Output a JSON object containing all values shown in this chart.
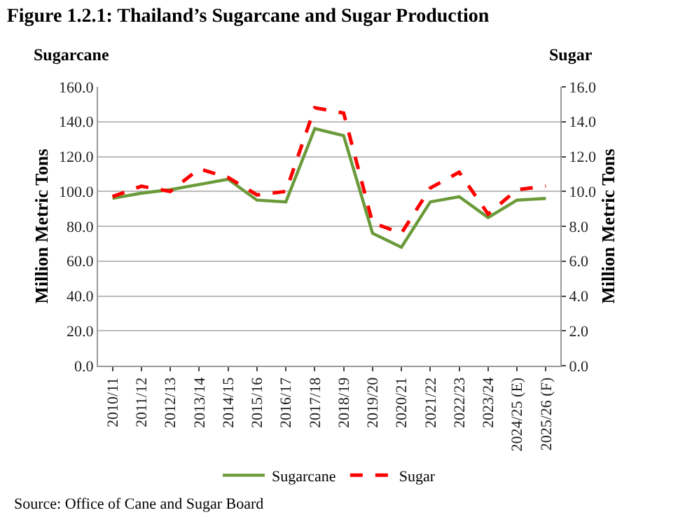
{
  "chart_data": {
    "type": "line",
    "title": "Figure 1.2.1: Thailand’s Sugarcane and Sugar Production",
    "categories": [
      "2010/11",
      "2011/12",
      "2012/13",
      "2013/14",
      "2014/15",
      "2015/16",
      "2016/17",
      "2017/18",
      "2018/19",
      "2019/20",
      "2020/21",
      "2021/22",
      "2022/23",
      "2023/24",
      "2024/25 (E)",
      "2025/26 (F)"
    ],
    "series": [
      {
        "name": "Sugarcane",
        "color": "#6a9a3a",
        "line_style": "solid",
        "values": [
          96,
          99,
          101,
          104,
          107,
          95,
          94,
          136,
          132,
          76,
          68,
          94,
          97,
          85,
          95,
          96
        ]
      },
      {
        "name": "Sugar",
        "color": "#ff0000",
        "line_style": "dashed",
        "axis": "y2",
        "values": [
          9.7,
          10.3,
          10.0,
          11.3,
          10.8,
          9.8,
          10.0,
          14.8,
          14.5,
          8.2,
          7.6,
          10.2,
          11.1,
          8.7,
          10.1,
          10.3
        ]
      }
    ],
    "ylabel": "Million Metric Tons",
    "y2label": "Million Metric Tons",
    "ylim": [
      0,
      160
    ],
    "yticks": [
      {
        "value": 0,
        "label": "0.0"
      },
      {
        "value": 20,
        "label": "20.0"
      },
      {
        "value": 40,
        "label": "40.0"
      },
      {
        "value": 60,
        "label": "60.0"
      },
      {
        "value": 80,
        "label": "80.0"
      },
      {
        "value": 100,
        "label": "100.0"
      },
      {
        "value": 120,
        "label": "120.0"
      },
      {
        "value": 140,
        "label": "140.0"
      },
      {
        "value": 160,
        "label": "160.0"
      }
    ],
    "y2lim": [
      0,
      16
    ],
    "y2ticks": [
      {
        "value": 0,
        "label": "0.0"
      },
      {
        "value": 2,
        "label": "2.0"
      },
      {
        "value": 4,
        "label": "4.0"
      },
      {
        "value": 6,
        "label": "6.0"
      },
      {
        "value": 8,
        "label": "8.0"
      },
      {
        "value": 10,
        "label": "10.0"
      },
      {
        "value": 12,
        "label": "12.0"
      },
      {
        "value": 14,
        "label": "14.0"
      },
      {
        "value": 16,
        "label": "16.0"
      }
    ],
    "annotations": [
      "Sugarcane",
      "Sugar",
      "Source: Office of Cane and Sugar Board"
    ],
    "grid": "y",
    "legend": "bottom",
    "marker": "none"
  }
}
